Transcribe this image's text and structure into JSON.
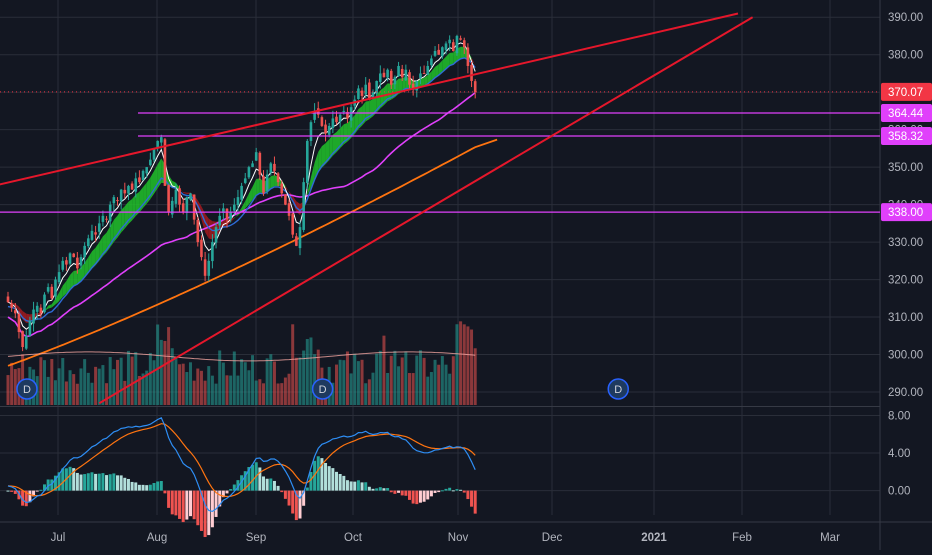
{
  "chart_data": {
    "type": "candlestick",
    "title": "",
    "x_labels": [
      "Jul",
      "Aug",
      "Sep",
      "Oct",
      "Nov",
      "Dec",
      "2021",
      "Feb",
      "Mar"
    ],
    "main_panel": {
      "y_ticks": [
        290,
        300,
        310,
        320,
        330,
        340,
        350,
        360,
        370,
        380,
        390
      ],
      "y_tick_labels": [
        "290.00",
        "300.00",
        "310.00",
        "320.00",
        "330.00",
        "340.00",
        "350.00",
        "360.00",
        "370.00",
        "380.00",
        "390.00"
      ],
      "ylim": [
        286,
        393
      ],
      "price_tags": [
        {
          "label": "370.07",
          "value": 370.07,
          "color": "#f23645"
        },
        {
          "label": "364.44",
          "value": 364.44,
          "color": "#e040fb"
        },
        {
          "label": "358.32",
          "value": 358.32,
          "color": "#e040fb"
        },
        {
          "label": "338.00",
          "value": 338.0,
          "color": "#e040fb"
        }
      ],
      "horizontal_levels": [
        364.44,
        358.32,
        338.0
      ],
      "last_price": 370.07,
      "trendlines": [
        {
          "name": "upper-channel",
          "color": "#e5172b",
          "from": {
            "day": -4,
            "value": 345
          },
          "to": {
            "day": 200,
            "value": 391
          }
        },
        {
          "name": "lower-channel",
          "color": "#e5172b",
          "from": {
            "day": 25,
            "value": 287
          },
          "to": {
            "day": 204,
            "value": 390
          }
        }
      ],
      "ohlc_closes": [
        314,
        312.5,
        311,
        306,
        302,
        305,
        309,
        312,
        313,
        311,
        316,
        318,
        315,
        320,
        322,
        325,
        324,
        327,
        326,
        323,
        326,
        329,
        331,
        333,
        332,
        335,
        337,
        336,
        340,
        342,
        341,
        344,
        343,
        345,
        344,
        347,
        346,
        349,
        350,
        352,
        355,
        357,
        358,
        345,
        338,
        341,
        344,
        340,
        338,
        342,
        343,
        336,
        330,
        326,
        321,
        325,
        330,
        334,
        337,
        339,
        336,
        338,
        340,
        342,
        345,
        347,
        350,
        351,
        354,
        348,
        343,
        348,
        351,
        349,
        346,
        343,
        340,
        337,
        332,
        329,
        334,
        346,
        357,
        362,
        365,
        364,
        361,
        359,
        361,
        363,
        362,
        364,
        365,
        363,
        366,
        368,
        371,
        369,
        372,
        368,
        370,
        373,
        375,
        374,
        376,
        372,
        374,
        377,
        374,
        376,
        372,
        371,
        373,
        375,
        375,
        377,
        379,
        381,
        380,
        382,
        383,
        384,
        381,
        385,
        384,
        382,
        377,
        373,
        370.07
      ],
      "overlays": [
        {
          "name": "sma-50",
          "color": "#e040fb"
        },
        {
          "name": "sma-200",
          "color": "#ff7410"
        },
        {
          "name": "ema-fast",
          "color": "#ffffff"
        },
        {
          "name": "ema-slow",
          "color": "#2e6bd6"
        },
        {
          "name": "cloud",
          "colors": [
            "#21c22a",
            "#a41a1f"
          ]
        }
      ],
      "dividend_markers": [
        {
          "label": "D"
        },
        {
          "label": "D"
        },
        {
          "label": "D"
        }
      ]
    },
    "macd_panel": {
      "y_ticks": [
        0,
        4,
        8
      ],
      "y_tick_labels": [
        "0.00",
        "4.00",
        "8.00"
      ],
      "ylim": [
        -2.6,
        8.8
      ],
      "lines": [
        {
          "name": "macd",
          "color": "#2e8ef5"
        },
        {
          "name": "signal",
          "color": "#ff7410"
        }
      ]
    },
    "colors": {
      "up": "#26a69a",
      "down": "#ef5350",
      "grid": "#2a2e39",
      "axis_text": "#b2b5be",
      "background": "#131722"
    },
    "grid": true
  }
}
